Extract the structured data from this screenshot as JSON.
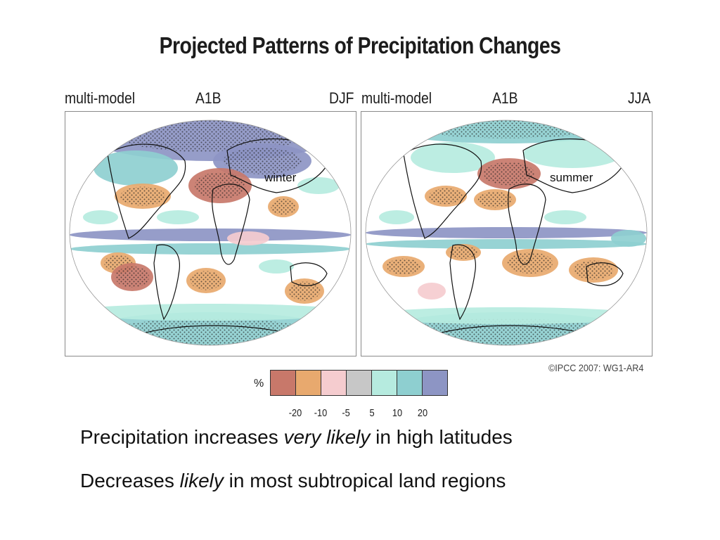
{
  "title": "Projected Patterns of Precipitation Changes",
  "maps": [
    {
      "model": "multi-model",
      "scenario": "A1B",
      "season": "DJF",
      "label": "winter"
    },
    {
      "model": "multi-model",
      "scenario": "A1B",
      "season": "JJA",
      "label": "summer"
    }
  ],
  "legend": {
    "unit": "%",
    "colors": [
      "#c8786a",
      "#e8a96e",
      "#f5cccf",
      "#c7c7c7",
      "#b6ebdf",
      "#8ecfd0",
      "#8d95c4"
    ],
    "ticks": [
      "-20",
      "-10",
      "-5",
      "5",
      "10",
      "20"
    ]
  },
  "copyright": "©IPCC 2007: WG1-AR4",
  "statements": [
    {
      "before": "Precipitation increases ",
      "emph": "very likely",
      "after": " in high latitudes"
    },
    {
      "before": "Decreases ",
      "emph": "likely",
      "after": " in most subtropical land regions"
    }
  ]
}
